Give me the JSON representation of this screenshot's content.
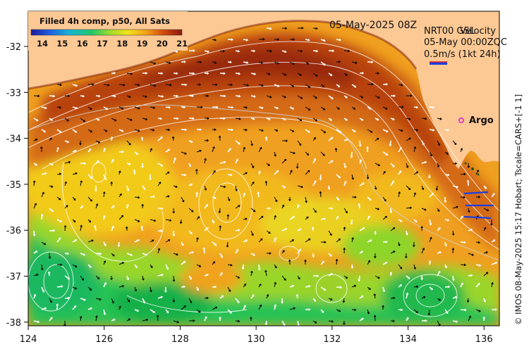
{
  "map": {
    "title_left": "Filled 4h comp, p50, All Sats",
    "title_date": "05-May-2025 08Z",
    "colorbar_ticks": [
      "14",
      "15",
      "16",
      "17",
      "18",
      "19",
      "20",
      "21"
    ],
    "colorbar_colors": [
      "#1a1a9a",
      "#1f5ce0",
      "#16b3d8",
      "#1fc86a",
      "#9bdc2a",
      "#f2e21b",
      "#f5a21a",
      "#d2480e",
      "#8a1a10"
    ],
    "legend_line1_a": "NRT00 GSL",
    "legend_line1_b": "Velocity",
    "legend_line2": "05-May 00:00ZQC",
    "legend_scale": "0.5m/s (1kt 24h)",
    "argo_label": "Argo",
    "x_ticks": [
      "124",
      "126",
      "128",
      "130",
      "132",
      "134",
      "136"
    ],
    "y_ticks": [
      "-32",
      "-33",
      "-34",
      "-35",
      "-36",
      "-37",
      "-38"
    ],
    "credit": "© IMOS 08-May-2025 15:17 Hobart; Tscale=CARS+[-1 1]",
    "colors": {
      "land": "#fcc894",
      "warm": "#b5420f",
      "mid": "#f39a1c",
      "cool": "#21c252",
      "arrow_sst": "#ffffff",
      "arrow_drift": "#000000",
      "argo": "#e01ad4",
      "coast_current": "#1a3fe0"
    }
  }
}
